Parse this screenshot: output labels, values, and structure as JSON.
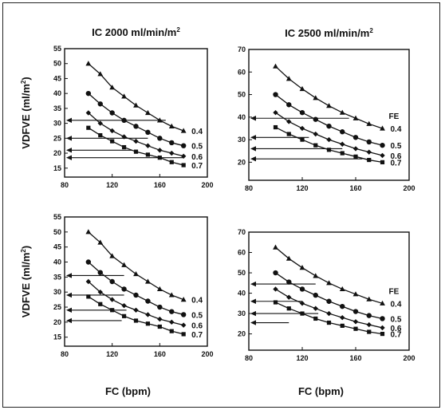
{
  "chart_data": [
    {
      "type": "line",
      "title": "IC 2000 ml/min/m",
      "title_sup": "2",
      "ylabel": "VDFVE (ml/m",
      "ylabel_sup": "2",
      "ylabel_end": ")",
      "xlabel": "",
      "xlim": [
        80,
        200
      ],
      "ylim": [
        12,
        55
      ],
      "xticks": [
        80,
        120,
        160,
        200
      ],
      "yticks": [
        15,
        20,
        25,
        30,
        35,
        40,
        45,
        50,
        55
      ],
      "series_label_header": "",
      "series": [
        {
          "name": "0.4",
          "marker": "triangle",
          "x": [
            100,
            110,
            120,
            130,
            140,
            150,
            160,
            170,
            180
          ],
          "y": [
            50,
            46.5,
            42,
            39,
            36,
            33.5,
            31,
            29,
            27.5
          ]
        },
        {
          "name": "0.5",
          "marker": "circle",
          "x": [
            100,
            110,
            120,
            130,
            140,
            150,
            160,
            170,
            180
          ],
          "y": [
            40,
            36.5,
            33.5,
            31,
            29,
            27,
            25,
            23.5,
            22.5
          ]
        },
        {
          "name": "0.6",
          "marker": "diamond",
          "x": [
            100,
            110,
            120,
            130,
            140,
            150,
            160,
            170,
            180
          ],
          "y": [
            33.5,
            30,
            27.5,
            25.5,
            24,
            22.5,
            21,
            20,
            19
          ]
        },
        {
          "name": "0.7",
          "marker": "square",
          "x": [
            100,
            110,
            120,
            130,
            140,
            150,
            160,
            170,
            180
          ],
          "y": [
            28.5,
            26,
            24,
            22,
            20.5,
            19.5,
            18.5,
            17,
            16
          ]
        }
      ],
      "arrows": [
        {
          "from_x": 165,
          "y": 31
        },
        {
          "from_x": 150,
          "y": 25
        },
        {
          "from_x": 137,
          "y": 21
        },
        {
          "from_x": 180,
          "y": 18.5
        }
      ]
    },
    {
      "type": "line",
      "title": "IC 2500 ml/min/m",
      "title_sup": "2",
      "ylabel": "",
      "xlabel": "",
      "xlim": [
        80,
        200
      ],
      "ylim": [
        12,
        70
      ],
      "xticks": [
        80,
        120,
        160,
        200
      ],
      "yticks": [
        20,
        30,
        40,
        50,
        60,
        70
      ],
      "series_label_header": "FE",
      "series": [
        {
          "name": "0.4",
          "marker": "triangle",
          "x": [
            100,
            110,
            120,
            130,
            140,
            150,
            160,
            170,
            180
          ],
          "y": [
            62.5,
            57,
            52.5,
            48.5,
            45,
            42,
            39.5,
            37,
            35
          ]
        },
        {
          "name": "0.5",
          "marker": "circle",
          "x": [
            100,
            110,
            120,
            130,
            140,
            150,
            160,
            170,
            180
          ],
          "y": [
            50,
            45.5,
            42,
            39,
            36,
            33.5,
            31,
            29,
            27.5
          ]
        },
        {
          "name": "0.6",
          "marker": "diamond",
          "x": [
            100,
            110,
            120,
            130,
            140,
            150,
            160,
            170,
            180
          ],
          "y": [
            42,
            38,
            35,
            32.5,
            30,
            28,
            26,
            24.5,
            23
          ]
        },
        {
          "name": "0.7",
          "marker": "square",
          "x": [
            100,
            110,
            120,
            130,
            140,
            150,
            160,
            170,
            180
          ],
          "y": [
            35.5,
            32.5,
            30,
            27.5,
            25.5,
            24,
            22.5,
            21,
            20
          ]
        }
      ],
      "arrows": [
        {
          "from_x": 155,
          "y": 39.5
        },
        {
          "from_x": 125,
          "y": 31
        },
        {
          "from_x": 150,
          "y": 26
        },
        {
          "from_x": 165,
          "y": 21.5
        }
      ]
    },
    {
      "type": "line",
      "title": "",
      "ylabel": "VDFVE (ml/m",
      "ylabel_sup": "2",
      "ylabel_end": ")",
      "xlabel": "FC (bpm)",
      "xlim": [
        80,
        200
      ],
      "ylim": [
        12,
        55
      ],
      "xticks": [
        80,
        120,
        160,
        200
      ],
      "yticks": [
        15,
        20,
        25,
        30,
        35,
        40,
        45,
        50,
        55
      ],
      "series_label_header": "",
      "series": [
        {
          "name": "0.4",
          "marker": "triangle",
          "x": [
            100,
            110,
            120,
            130,
            140,
            150,
            160,
            170,
            180
          ],
          "y": [
            50,
            46.5,
            42,
            39,
            36,
            33.5,
            31,
            29,
            27.5
          ]
        },
        {
          "name": "0.5",
          "marker": "circle",
          "x": [
            100,
            110,
            120,
            130,
            140,
            150,
            160,
            170,
            180
          ],
          "y": [
            40,
            36.5,
            33.5,
            31,
            29,
            27,
            25,
            23.5,
            22.5
          ]
        },
        {
          "name": "0.6",
          "marker": "diamond",
          "x": [
            100,
            110,
            120,
            130,
            140,
            150,
            160,
            170,
            180
          ],
          "y": [
            33.5,
            30,
            27.5,
            25.5,
            24,
            22.5,
            21,
            20,
            19
          ]
        },
        {
          "name": "0.7",
          "marker": "square",
          "x": [
            100,
            110,
            120,
            130,
            140,
            150,
            160,
            170,
            180
          ],
          "y": [
            28.5,
            26,
            24,
            22,
            20.5,
            19.5,
            18.5,
            17,
            16
          ]
        }
      ],
      "arrows": [
        {
          "from_x": 130,
          "y": 35.5
        },
        {
          "from_x": 130,
          "y": 29
        },
        {
          "from_x": 132,
          "y": 24
        },
        {
          "from_x": 128,
          "y": 20.5
        }
      ]
    },
    {
      "type": "line",
      "title": "",
      "ylabel": "",
      "xlabel": "FC (bpm)",
      "xlim": [
        80,
        200
      ],
      "ylim": [
        12,
        70
      ],
      "xticks": [
        80,
        120,
        160,
        200
      ],
      "yticks": [
        20,
        30,
        40,
        50,
        60,
        70
      ],
      "series_label_header": "FE",
      "series": [
        {
          "name": "0.4",
          "marker": "triangle",
          "x": [
            100,
            110,
            120,
            130,
            140,
            150,
            160,
            170,
            180
          ],
          "y": [
            62.5,
            57,
            52.5,
            48.5,
            45,
            42,
            39.5,
            37,
            35
          ]
        },
        {
          "name": "0.5",
          "marker": "circle",
          "x": [
            100,
            110,
            120,
            130,
            140,
            150,
            160,
            170,
            180
          ],
          "y": [
            50,
            45.5,
            42,
            39,
            36,
            33.5,
            31,
            29,
            27.5
          ]
        },
        {
          "name": "0.6",
          "marker": "diamond",
          "x": [
            100,
            110,
            120,
            130,
            140,
            150,
            160,
            170,
            180
          ],
          "y": [
            42,
            38,
            35,
            32.5,
            30,
            28,
            26,
            24.5,
            23
          ]
        },
        {
          "name": "0.7",
          "marker": "square",
          "x": [
            100,
            110,
            120,
            130,
            140,
            150,
            160,
            170,
            180
          ],
          "y": [
            35.5,
            32.5,
            30,
            27.5,
            25.5,
            24,
            22.5,
            21,
            20
          ]
        }
      ],
      "arrows": [
        {
          "from_x": 130,
          "y": 44.5
        },
        {
          "from_x": 120,
          "y": 36
        },
        {
          "from_x": 132,
          "y": 30
        },
        {
          "from_x": 110,
          "y": 25.5
        }
      ]
    }
  ]
}
